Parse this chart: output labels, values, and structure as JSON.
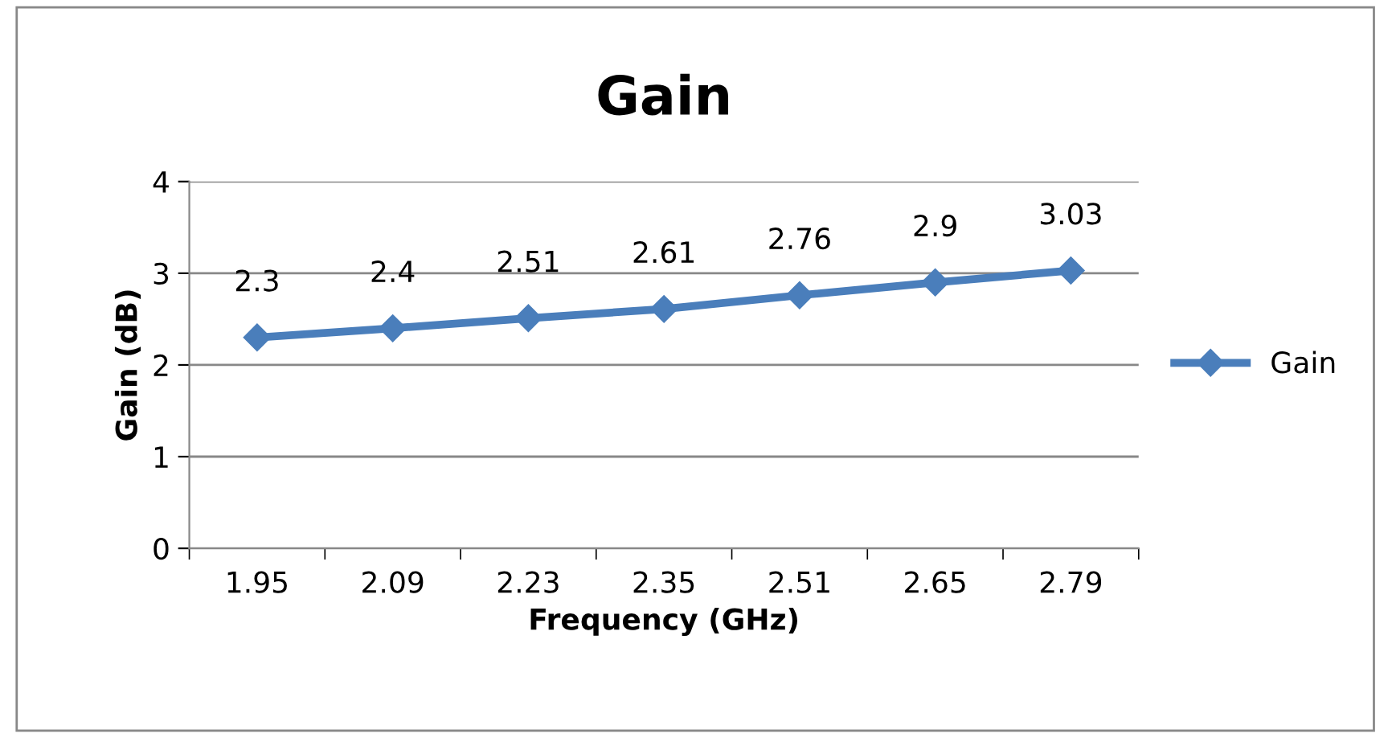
{
  "chart_data": {
    "type": "line",
    "title": "Gain",
    "xlabel": "Frequency (GHz)",
    "ylabel": "Gain (dB)",
    "categories": [
      "1.95",
      "2.09",
      "2.23",
      "2.35",
      "2.51",
      "2.65",
      "2.79"
    ],
    "series": [
      {
        "name": "Gain",
        "color": "#4a7ebb",
        "values": [
          2.3,
          2.4,
          2.51,
          2.61,
          2.76,
          2.9,
          3.03
        ]
      }
    ],
    "ylim": [
      0,
      4
    ],
    "yticks": [
      0,
      1,
      2,
      3,
      4
    ],
    "grid": "y",
    "legend": "right",
    "marker": "diamond",
    "line_style": "solid",
    "data_labels": true
  }
}
